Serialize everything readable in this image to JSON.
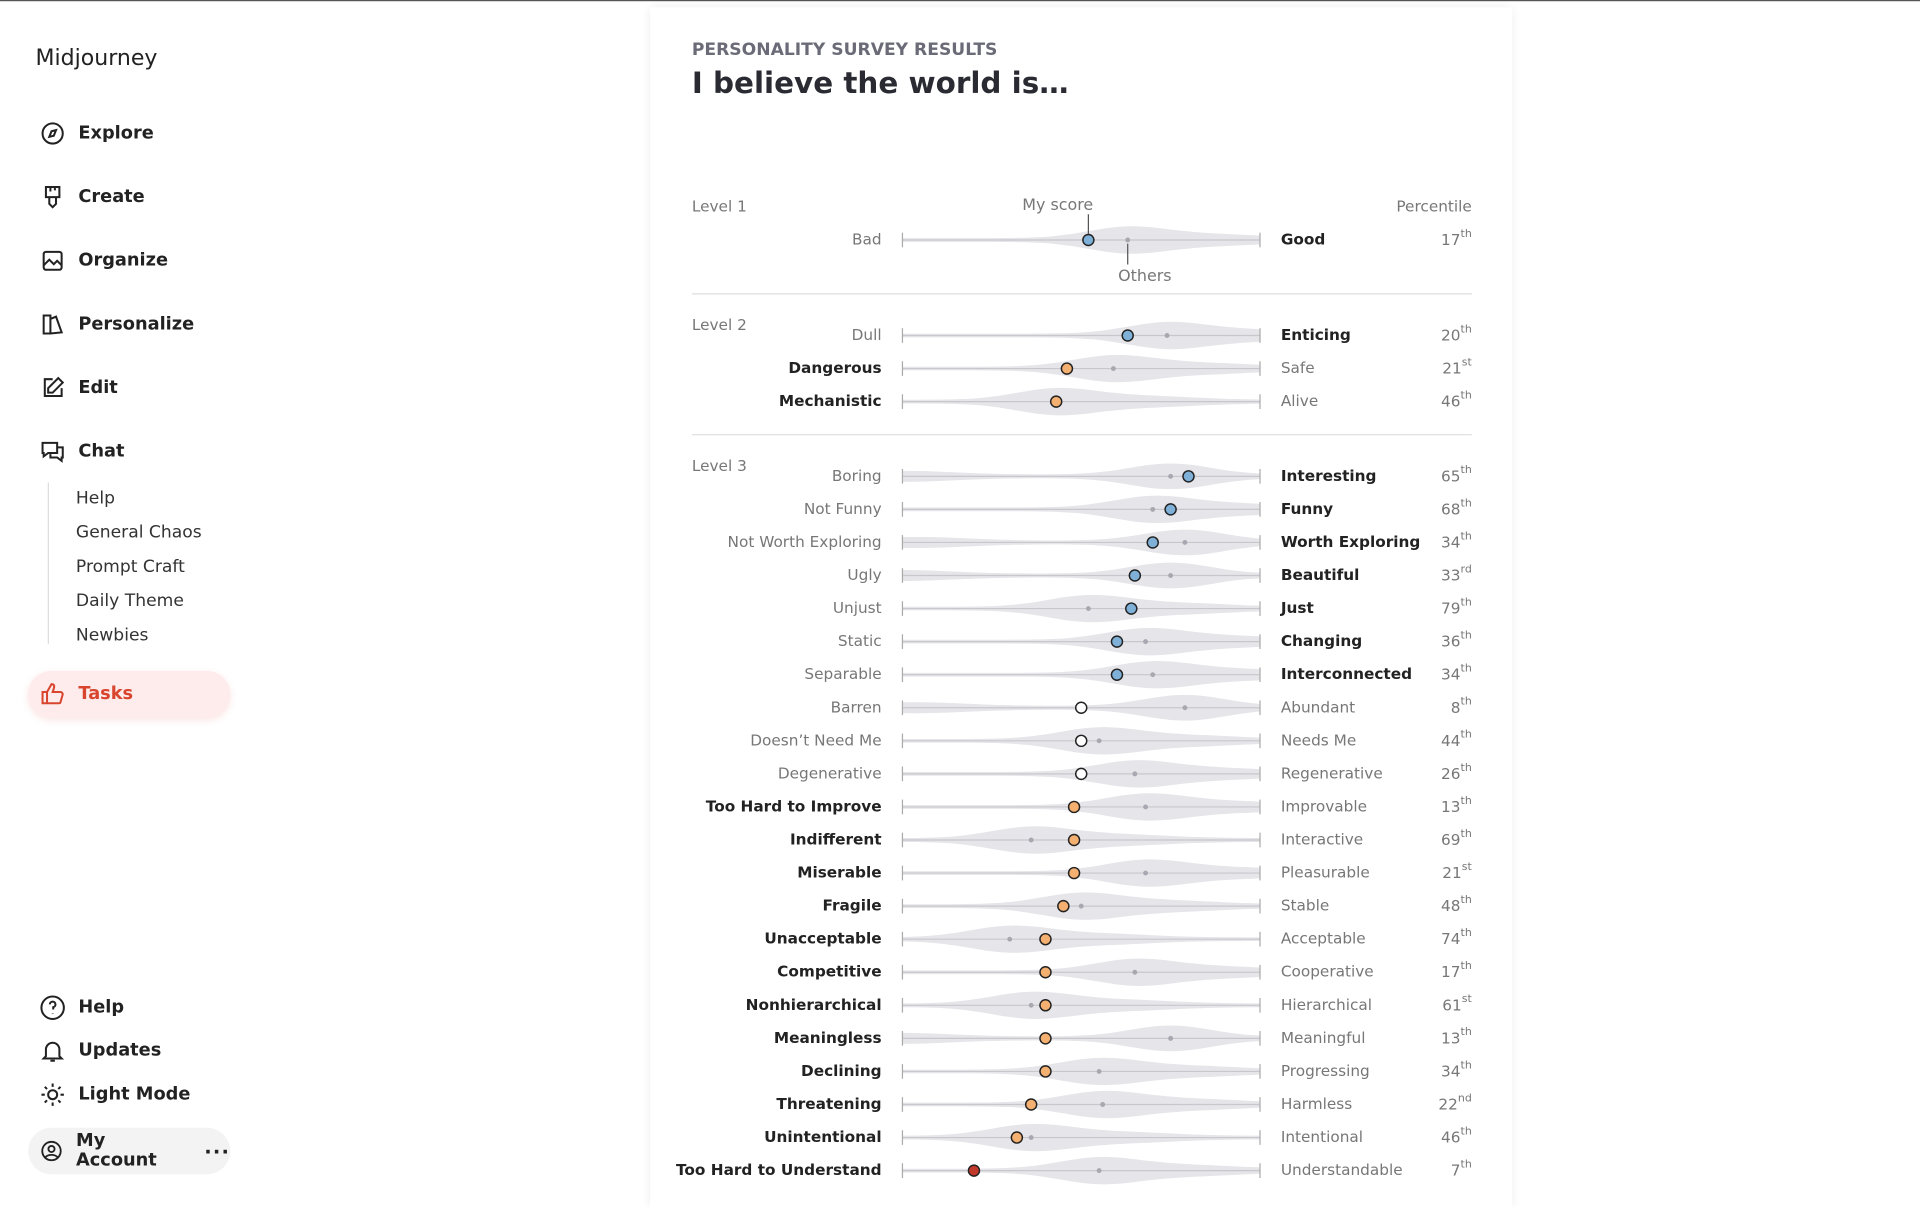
{
  "sidebar": {
    "brand": "Midjourney",
    "nav": [
      "Explore",
      "Create",
      "Organize",
      "Personalize",
      "Edit",
      "Chat"
    ],
    "channels": [
      "Help",
      "General Chaos",
      "Prompt Craft",
      "Daily Theme",
      "Newbies"
    ],
    "active": "Tasks",
    "bottom": [
      "Help",
      "Updates",
      "Light Mode"
    ],
    "account": "My Account"
  },
  "survey": {
    "eyebrow": "PERSONALITY SURVEY RESULTS",
    "title": "I believe the world is…",
    "my_score_label": "My score",
    "others_label": "Others",
    "percentile_label": "Percentile",
    "levels": [
      {
        "label": "Level 1",
        "rows": [
          {
            "left": "Bad",
            "right": "Good",
            "emphasis": "right",
            "color": "#7fb0d8",
            "score": 52,
            "others": 63,
            "percentile": 17,
            "suffix": "th"
          }
        ]
      },
      {
        "label": "Level 2",
        "rows": [
          {
            "left": "Dull",
            "right": "Enticing",
            "emphasis": "right",
            "color": "#7fb0d8",
            "score": 63,
            "others": 74,
            "percentile": 20,
            "suffix": "th"
          },
          {
            "left": "Dangerous",
            "right": "Safe",
            "emphasis": "left",
            "color": "#f4b071",
            "score": 46,
            "others": 59,
            "percentile": 21,
            "suffix": "st"
          },
          {
            "left": "Mechanistic",
            "right": "Alive",
            "emphasis": "left",
            "color": "#f4b071",
            "score": 43,
            "others": 43,
            "percentile": 46,
            "suffix": "th"
          }
        ]
      },
      {
        "label": "Level 3",
        "rows": [
          {
            "left": "Boring",
            "right": "Interesting",
            "emphasis": "right",
            "color": "#7fb0d8",
            "score": 80,
            "others": 75,
            "percentile": 65,
            "suffix": "th"
          },
          {
            "left": "Not Funny",
            "right": "Funny",
            "emphasis": "right",
            "color": "#7fb0d8",
            "score": 75,
            "others": 70,
            "percentile": 68,
            "suffix": "th"
          },
          {
            "left": "Not Worth Exploring",
            "right": "Worth Exploring",
            "emphasis": "right",
            "color": "#7fb0d8",
            "score": 70,
            "others": 79,
            "percentile": 34,
            "suffix": "th"
          },
          {
            "left": "Ugly",
            "right": "Beautiful",
            "emphasis": "right",
            "color": "#7fb0d8",
            "score": 65,
            "others": 75,
            "percentile": 33,
            "suffix": "rd"
          },
          {
            "left": "Unjust",
            "right": "Just",
            "emphasis": "right",
            "color": "#7fb0d8",
            "score": 64,
            "others": 52,
            "percentile": 79,
            "suffix": "th"
          },
          {
            "left": "Static",
            "right": "Changing",
            "emphasis": "right",
            "color": "#7fb0d8",
            "score": 60,
            "others": 68,
            "percentile": 36,
            "suffix": "th"
          },
          {
            "left": "Separable",
            "right": "Interconnected",
            "emphasis": "right",
            "color": "#7fb0d8",
            "score": 60,
            "others": 70,
            "percentile": 34,
            "suffix": "th"
          },
          {
            "left": "Barren",
            "right": "Abundant",
            "color": "#ffffff",
            "score": 50,
            "others": 79,
            "percentile": 8,
            "suffix": "th"
          },
          {
            "left": "Doesn’t Need Me",
            "right": "Needs Me",
            "color": "#ffffff",
            "score": 50,
            "others": 55,
            "percentile": 44,
            "suffix": "th"
          },
          {
            "left": "Degenerative",
            "right": "Regenerative",
            "color": "#ffffff",
            "score": 50,
            "others": 65,
            "percentile": 26,
            "suffix": "th"
          },
          {
            "left": "Too Hard to Improve",
            "right": "Improvable",
            "emphasis": "left",
            "color": "#f4b071",
            "score": 48,
            "others": 68,
            "percentile": 13,
            "suffix": "th"
          },
          {
            "left": "Indifferent",
            "right": "Interactive",
            "emphasis": "left",
            "color": "#f4b071",
            "score": 48,
            "others": 36,
            "percentile": 69,
            "suffix": "th"
          },
          {
            "left": "Miserable",
            "right": "Pleasurable",
            "emphasis": "left",
            "color": "#f4b071",
            "score": 48,
            "others": 68,
            "percentile": 21,
            "suffix": "st"
          },
          {
            "left": "Fragile",
            "right": "Stable",
            "emphasis": "left",
            "color": "#f4b071",
            "score": 45,
            "others": 50,
            "percentile": 48,
            "suffix": "th"
          },
          {
            "left": "Unacceptable",
            "right": "Acceptable",
            "emphasis": "left",
            "color": "#f4b071",
            "score": 40,
            "others": 30,
            "percentile": 74,
            "suffix": "th"
          },
          {
            "left": "Competitive",
            "right": "Cooperative",
            "emphasis": "left",
            "color": "#f4b071",
            "score": 40,
            "others": 65,
            "percentile": 17,
            "suffix": "th"
          },
          {
            "left": "Nonhierarchical",
            "right": "Hierarchical",
            "emphasis": "left",
            "color": "#f4b071",
            "score": 40,
            "others": 36,
            "percentile": 61,
            "suffix": "st"
          },
          {
            "left": "Meaningless",
            "right": "Meaningful",
            "emphasis": "left",
            "color": "#f4b071",
            "score": 40,
            "others": 75,
            "percentile": 13,
            "suffix": "th"
          },
          {
            "left": "Declining",
            "right": "Progressing",
            "emphasis": "left",
            "color": "#f4b071",
            "score": 40,
            "others": 55,
            "percentile": 34,
            "suffix": "th"
          },
          {
            "left": "Threatening",
            "right": "Harmless",
            "emphasis": "left",
            "color": "#f4b071",
            "score": 36,
            "others": 56,
            "percentile": 22,
            "suffix": "nd"
          },
          {
            "left": "Unintentional",
            "right": "Intentional",
            "emphasis": "left",
            "color": "#f4b071",
            "score": 32,
            "others": 36,
            "percentile": 46,
            "suffix": "th"
          },
          {
            "left": "Too Hard to Understand",
            "right": "Understandable",
            "emphasis": "left",
            "color": "#c0392b",
            "score": 20,
            "others": 55,
            "percentile": 7,
            "suffix": "th"
          }
        ]
      }
    ]
  }
}
